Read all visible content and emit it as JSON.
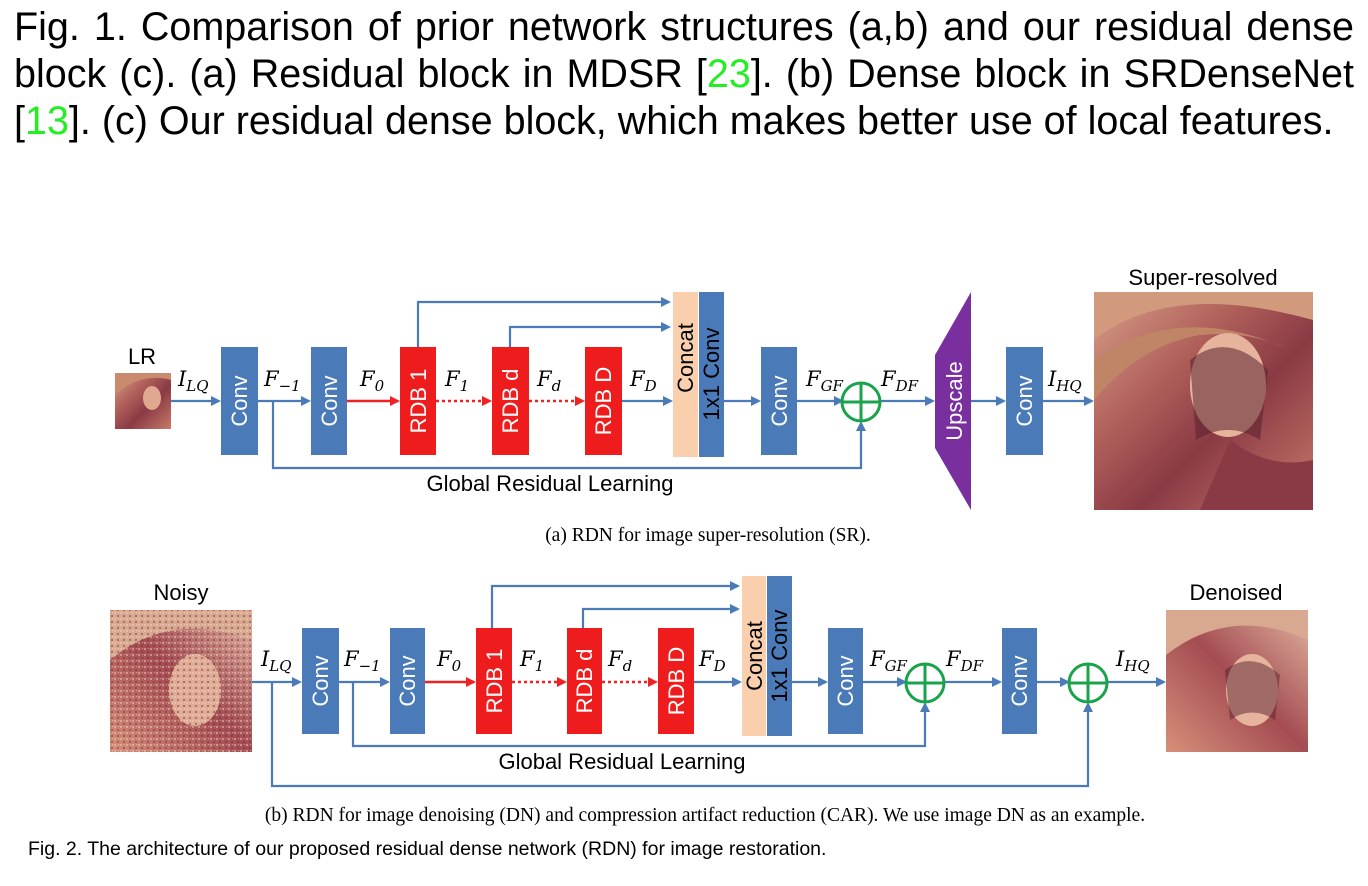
{
  "fig1_caption": {
    "part1": "Fig. 1. Comparison of prior network structures (a,b) and our residual dense block (c). (a) Residual block in MDSR [",
    "ref1": "23",
    "part2": "]. (b) Dense block in SRDenseNet [",
    "ref2": "13",
    "part3": "]. (c) Our residual dense block, which makes better use of local features."
  },
  "diagram_a": {
    "input_label": "LR",
    "output_label": "Super-resolved",
    "blocks": {
      "conv": "Conv",
      "rdb1": "RDB 1",
      "rdbd": "RDB d",
      "rdbD": "RDB D",
      "concat": "Concat",
      "conv1x1": "1x1 Conv",
      "upscale": "Upscale"
    },
    "vars": {
      "i_lq": {
        "base": "I",
        "sub": "LQ"
      },
      "f_m1": {
        "base": "F",
        "sub": "−1"
      },
      "f0": {
        "base": "F",
        "sub": "0"
      },
      "f1": {
        "base": "F",
        "sub": "1"
      },
      "fd": {
        "base": "F",
        "sub": "d"
      },
      "fD": {
        "base": "F",
        "sub": "D"
      },
      "fgf": {
        "base": "F",
        "sub": "GF"
      },
      "fdf": {
        "base": "F",
        "sub": "DF"
      },
      "i_hq": {
        "base": "I",
        "sub": "HQ"
      }
    },
    "global_residual_label": "Global Residual Learning",
    "subcaption": "(a)  RDN for image super-resolution (SR)."
  },
  "diagram_b": {
    "input_label": "Noisy",
    "output_label": "Denoised",
    "global_residual_label": "Global Residual Learning",
    "subcaption": "(b)  RDN for image denoising (DN) and compression artifact reduction (CAR). We use image DN as an example."
  },
  "fig2_caption": "Fig. 2. The architecture of our proposed residual dense network (RDN) for image restoration.",
  "colors": {
    "conv": "#4a7ab8",
    "rdb": "#ee1c1c",
    "concat": "#f9cfae",
    "upscale": "#7a2f9e",
    "arrow": "#4a7ab8",
    "red_arrow": "#ee2222",
    "sum": "#1aa34a",
    "ref_link": "#22ee22"
  }
}
